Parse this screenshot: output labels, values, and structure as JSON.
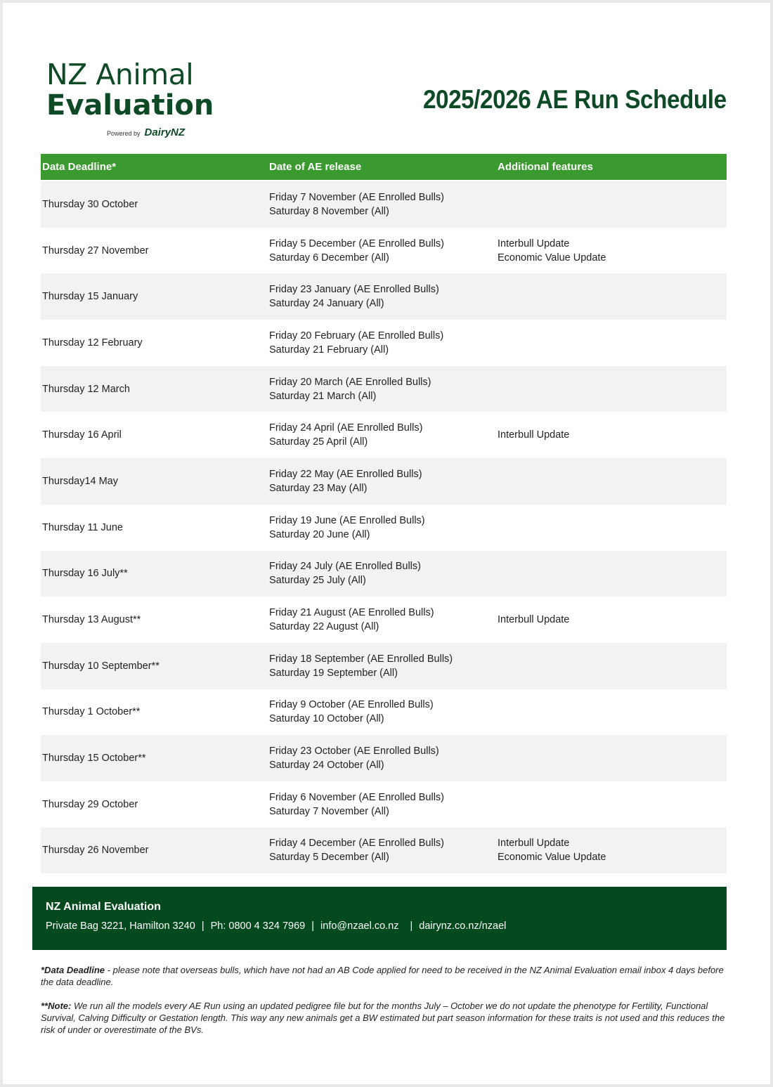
{
  "logo": {
    "line1": "NZ Animal",
    "line2": "Evaluation",
    "powered_by": "Powered by",
    "brand": "DairyNZ"
  },
  "title": "2025/2026 AE Run Schedule",
  "colors": {
    "header_green": "#3a9a2f",
    "footer_green": "#034a1e",
    "logo_green": "#0e4a25",
    "row_alt": "#f2f2f2"
  },
  "table": {
    "headers": [
      "Data Deadline*",
      "Date of AE release",
      "Additional features"
    ],
    "rows": [
      {
        "deadline": "Thursday 30 October",
        "release": [
          "Friday 7 November (AE Enrolled Bulls)",
          "Saturday 8 November (All)"
        ],
        "features": []
      },
      {
        "deadline": "Thursday 27 November",
        "release": [
          "Friday 5 December (AE Enrolled Bulls)",
          "Saturday 6 December (All)"
        ],
        "features": [
          "Interbull Update",
          "Economic Value Update"
        ]
      },
      {
        "deadline": "Thursday 15 January",
        "release": [
          "Friday 23 January (AE Enrolled Bulls)",
          "Saturday 24 January (All)"
        ],
        "features": []
      },
      {
        "deadline": "Thursday 12 February",
        "release": [
          "Friday 20 February (AE Enrolled Bulls)",
          "Saturday 21 February (All)"
        ],
        "features": []
      },
      {
        "deadline": "Thursday 12 March",
        "release": [
          "Friday 20 March (AE Enrolled Bulls)",
          "Saturday 21 March (All)"
        ],
        "features": []
      },
      {
        "deadline": "Thursday 16 April",
        "release": [
          "Friday 24 April (AE Enrolled Bulls)",
          "Saturday 25 April (All)"
        ],
        "features": [
          "Interbull Update"
        ]
      },
      {
        "deadline": "Thursday14 May",
        "release": [
          "Friday 22 May (AE Enrolled Bulls)",
          "Saturday 23 May (All)"
        ],
        "features": []
      },
      {
        "deadline": "Thursday 11 June",
        "release": [
          "Friday 19 June (AE Enrolled Bulls)",
          "Saturday 20 June (All)"
        ],
        "features": []
      },
      {
        "deadline": "Thursday 16 July**",
        "release": [
          "Friday 24 July (AE Enrolled Bulls)",
          "Saturday 25 July (All)"
        ],
        "features": []
      },
      {
        "deadline": "Thursday 13 August**",
        "release": [
          "Friday 21 August (AE Enrolled Bulls)",
          "Saturday 22 August (All)"
        ],
        "features": [
          "Interbull Update"
        ]
      },
      {
        "deadline": "Thursday 10 September**",
        "release": [
          "Friday 18 September (AE Enrolled Bulls)",
          "Saturday 19 September (All)"
        ],
        "features": []
      },
      {
        "deadline": "Thursday 1 October**",
        "release": [
          "Friday 9 October (AE Enrolled Bulls)",
          "Saturday 10 October (All)"
        ],
        "features": []
      },
      {
        "deadline": "Thursday 15 October**",
        "release": [
          "Friday 23 October (AE Enrolled Bulls)",
          "Saturday 24 October (All)"
        ],
        "features": []
      },
      {
        "deadline": "Thursday 29 October",
        "release": [
          "Friday 6 November (AE Enrolled Bulls)",
          "Saturday 7 November (All)"
        ],
        "features": []
      },
      {
        "deadline": "Thursday 26 November",
        "release": [
          "Friday 4 December (AE Enrolled Bulls)",
          "Saturday 5 December (All)"
        ],
        "features": [
          "Interbull Update",
          "Economic Value Update"
        ]
      }
    ]
  },
  "footer": {
    "name": "NZ Animal Evaluation",
    "address": "Private Bag 3221, Hamilton 3240",
    "phone": "Ph: 0800 4 324 7969",
    "email": "info@nzael.co.nz",
    "website": "dairynz.co.nz/nzael",
    "separator": "|"
  },
  "notes": [
    {
      "label": "*Data Deadline",
      "text": " - please note that overseas bulls, which have not had an AB Code applied for need to be received in the NZ Animal Evaluation email inbox 4 days before the data deadline."
    },
    {
      "label": "**Note:",
      "text": " We run all the models every AE Run using an updated pedigree file but for the months July – October we do not update the phenotype for Fertility, Functional Survival, Calving Difficulty or Gestation length. This way any new animals get a BW estimated but part season information for these traits is not used and this reduces the risk of under or overestimate of the BVs."
    }
  ]
}
